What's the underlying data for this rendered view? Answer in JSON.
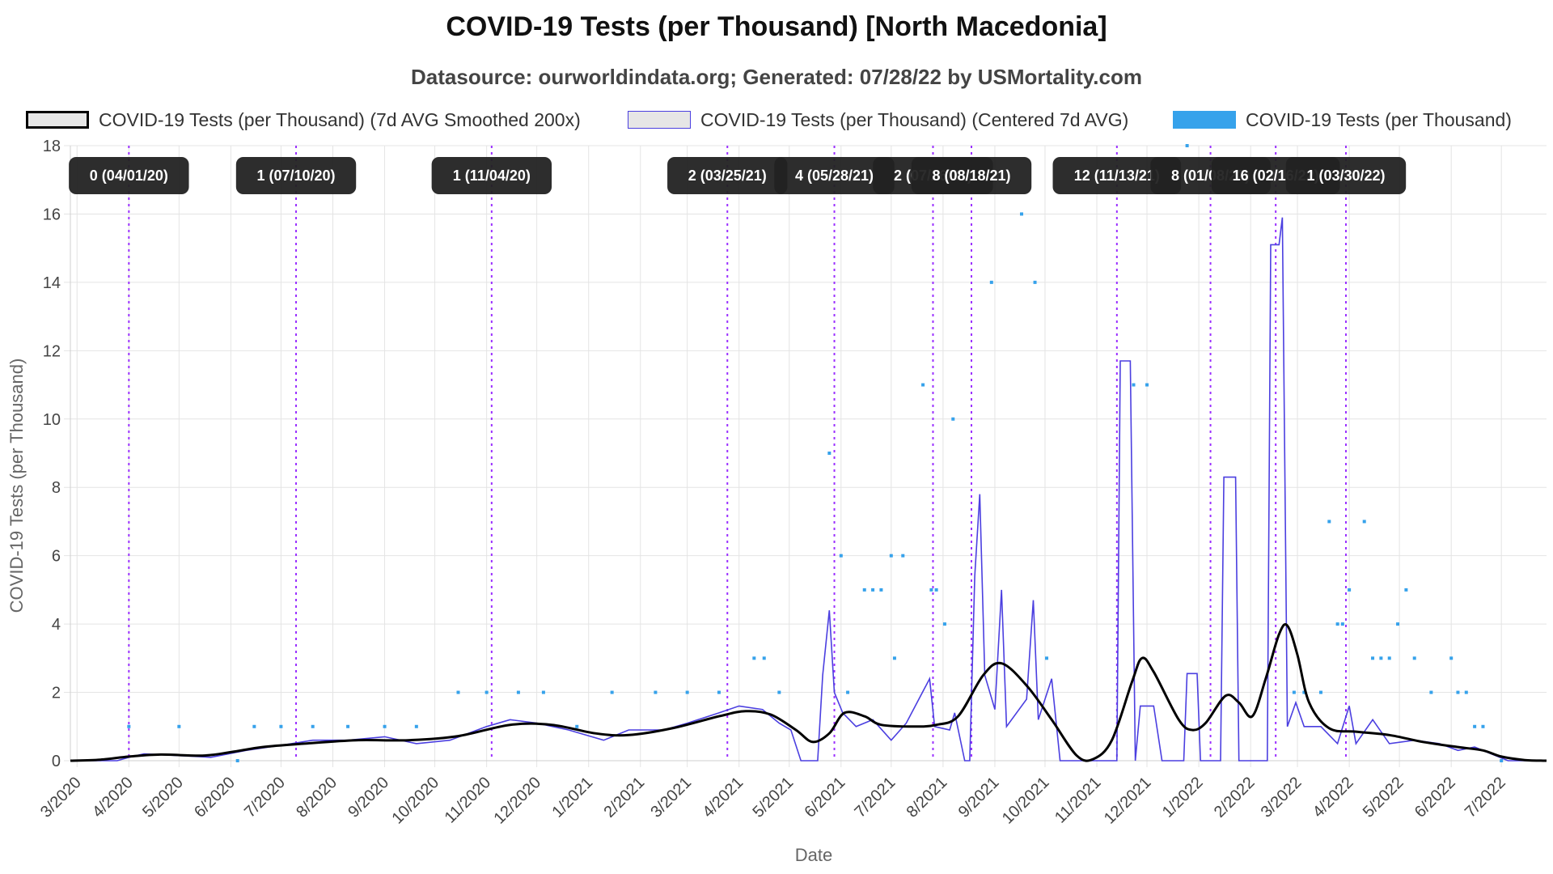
{
  "title": "COVID-19 Tests (per Thousand) [North Macedonia]",
  "subtitle": "Datasource: ourworldindata.org; Generated: 07/28/22 by USMortality.com",
  "legend": [
    {
      "label": "COVID-19 Tests (per Thousand) (7d AVG Smoothed 200x)",
      "color": "#000000",
      "fill": "#e6e6e6"
    },
    {
      "label": "COVID-19 Tests (per Thousand) (Centered 7d AVG)",
      "color": "#4b3fe0",
      "fill": "#e6e6e6"
    },
    {
      "label": "COVID-19 Tests (per Thousand)",
      "color": "#36a2eb",
      "fill": "#36a2eb"
    }
  ],
  "chart_data": {
    "type": "line",
    "xlabel": "Date",
    "ylabel": "COVID-19 Tests (per Thousand)",
    "x_range": [
      "2020-02-26",
      "2022-07-28"
    ],
    "ylim": [
      0,
      18
    ],
    "yticks": [
      0,
      2,
      4,
      6,
      8,
      10,
      12,
      14,
      16,
      18
    ],
    "xticks": [
      "3/2020",
      "4/2020",
      "5/2020",
      "6/2020",
      "7/2020",
      "8/2020",
      "9/2020",
      "10/2020",
      "11/2020",
      "12/2020",
      "1/2021",
      "2/2021",
      "3/2021",
      "4/2021",
      "5/2021",
      "6/2021",
      "7/2021",
      "8/2021",
      "9/2021",
      "10/2021",
      "11/2021",
      "12/2021",
      "1/2022",
      "2/2022",
      "3/2022",
      "4/2022",
      "5/2022",
      "6/2022",
      "7/2022"
    ],
    "grid": true,
    "legend_position": "top",
    "series": [
      {
        "name": "COVID-19 Tests (per Thousand) (7d AVG Smoothed 200x)",
        "color": "#000000",
        "points": [
          [
            "2020-02-26",
            0
          ],
          [
            "2020-03-15",
            0.03
          ],
          [
            "2020-04-01",
            0.12
          ],
          [
            "2020-04-20",
            0.18
          ],
          [
            "2020-05-15",
            0.15
          ],
          [
            "2020-06-01",
            0.25
          ],
          [
            "2020-06-20",
            0.4
          ],
          [
            "2020-07-15",
            0.5
          ],
          [
            "2020-08-15",
            0.6
          ],
          [
            "2020-09-15",
            0.6
          ],
          [
            "2020-10-15",
            0.72
          ],
          [
            "2020-11-15",
            1.05
          ],
          [
            "2020-12-10",
            1.05
          ],
          [
            "2021-01-05",
            0.8
          ],
          [
            "2021-01-25",
            0.75
          ],
          [
            "2021-02-20",
            0.95
          ],
          [
            "2021-03-20",
            1.3
          ],
          [
            "2021-04-05",
            1.45
          ],
          [
            "2021-04-20",
            1.35
          ],
          [
            "2021-05-05",
            0.9
          ],
          [
            "2021-05-15",
            0.55
          ],
          [
            "2021-05-25",
            0.8
          ],
          [
            "2021-06-03",
            1.4
          ],
          [
            "2021-06-15",
            1.3
          ],
          [
            "2021-06-25",
            1.05
          ],
          [
            "2021-07-15",
            1.0
          ],
          [
            "2021-07-28",
            1.05
          ],
          [
            "2021-08-10",
            1.3
          ],
          [
            "2021-08-25",
            2.5
          ],
          [
            "2021-09-05",
            2.85
          ],
          [
            "2021-09-20",
            2.2
          ],
          [
            "2021-10-05",
            1.2
          ],
          [
            "2021-10-20",
            0.15
          ],
          [
            "2021-10-30",
            0.05
          ],
          [
            "2021-11-10",
            0.6
          ],
          [
            "2021-11-22",
            2.3
          ],
          [
            "2021-11-28",
            3.0
          ],
          [
            "2021-12-05",
            2.6
          ],
          [
            "2021-12-20",
            1.2
          ],
          [
            "2021-12-28",
            0.9
          ],
          [
            "2022-01-05",
            1.1
          ],
          [
            "2022-01-17",
            1.9
          ],
          [
            "2022-01-25",
            1.7
          ],
          [
            "2022-02-02",
            1.3
          ],
          [
            "2022-02-10",
            2.4
          ],
          [
            "2022-02-18",
            3.7
          ],
          [
            "2022-02-23",
            3.95
          ],
          [
            "2022-03-01",
            3.1
          ],
          [
            "2022-03-08",
            1.7
          ],
          [
            "2022-03-20",
            0.95
          ],
          [
            "2022-04-05",
            0.85
          ],
          [
            "2022-04-25",
            0.75
          ],
          [
            "2022-05-15",
            0.55
          ],
          [
            "2022-06-05",
            0.4
          ],
          [
            "2022-06-20",
            0.3
          ],
          [
            "2022-07-01",
            0.12
          ],
          [
            "2022-07-15",
            0.02
          ],
          [
            "2022-07-28",
            0
          ]
        ]
      },
      {
        "name": "COVID-19 Tests (per Thousand) (Centered 7d AVG)",
        "color": "#4b3fe0",
        "points": [
          [
            "2020-02-26",
            0
          ],
          [
            "2020-03-25",
            0
          ],
          [
            "2020-04-01",
            0.1
          ],
          [
            "2020-04-10",
            0.2
          ],
          [
            "2020-05-01",
            0.15
          ],
          [
            "2020-05-20",
            0.1
          ],
          [
            "2020-06-10",
            0.3
          ],
          [
            "2020-07-01",
            0.45
          ],
          [
            "2020-07-20",
            0.6
          ],
          [
            "2020-08-10",
            0.6
          ],
          [
            "2020-09-01",
            0.7
          ],
          [
            "2020-09-20",
            0.5
          ],
          [
            "2020-10-10",
            0.6
          ],
          [
            "2020-11-01",
            1.0
          ],
          [
            "2020-11-15",
            1.2
          ],
          [
            "2020-12-01",
            1.1
          ],
          [
            "2020-12-20",
            0.9
          ],
          [
            "2021-01-10",
            0.6
          ],
          [
            "2021-01-25",
            0.9
          ],
          [
            "2021-02-15",
            0.9
          ],
          [
            "2021-03-01",
            1.1
          ],
          [
            "2021-03-20",
            1.4
          ],
          [
            "2021-04-01",
            1.6
          ],
          [
            "2021-04-15",
            1.5
          ],
          [
            "2021-04-25",
            1.1
          ],
          [
            "2021-05-02",
            0.9
          ],
          [
            "2021-05-08",
            0
          ],
          [
            "2021-05-18",
            0
          ],
          [
            "2021-05-21",
            2.5
          ],
          [
            "2021-05-25",
            4.4
          ],
          [
            "2021-05-28",
            2.0
          ],
          [
            "2021-06-02",
            1.4
          ],
          [
            "2021-06-10",
            1.0
          ],
          [
            "2021-06-20",
            1.2
          ],
          [
            "2021-07-01",
            0.6
          ],
          [
            "2021-07-10",
            1.1
          ],
          [
            "2021-07-24",
            2.4
          ],
          [
            "2021-07-27",
            1.0
          ],
          [
            "2021-08-05",
            0.9
          ],
          [
            "2021-08-08",
            1.4
          ],
          [
            "2021-08-14",
            0
          ],
          [
            "2021-08-17",
            0
          ],
          [
            "2021-08-20",
            5.4
          ],
          [
            "2021-08-23",
            7.8
          ],
          [
            "2021-08-26",
            2.5
          ],
          [
            "2021-09-01",
            1.5
          ],
          [
            "2021-09-05",
            5.0
          ],
          [
            "2021-09-08",
            1.0
          ],
          [
            "2021-09-20",
            1.8
          ],
          [
            "2021-09-24",
            4.7
          ],
          [
            "2021-09-27",
            1.2
          ],
          [
            "2021-10-05",
            2.4
          ],
          [
            "2021-10-10",
            0
          ],
          [
            "2021-11-13",
            0
          ],
          [
            "2021-11-15",
            11.7
          ],
          [
            "2021-11-21",
            11.7
          ],
          [
            "2021-11-24",
            0
          ],
          [
            "2021-11-27",
            1.6
          ],
          [
            "2021-12-05",
            1.6
          ],
          [
            "2021-12-10",
            0
          ],
          [
            "2021-12-23",
            0
          ],
          [
            "2021-12-25",
            2.55
          ],
          [
            "2021-12-31",
            2.55
          ],
          [
            "2022-01-02",
            0
          ],
          [
            "2022-01-14",
            0
          ],
          [
            "2022-01-16",
            8.3
          ],
          [
            "2022-01-23",
            8.3
          ],
          [
            "2022-01-25",
            0
          ],
          [
            "2022-02-11",
            0
          ],
          [
            "2022-02-13",
            15.1
          ],
          [
            "2022-02-18",
            15.1
          ],
          [
            "2022-02-20",
            15.9
          ],
          [
            "2022-02-23",
            1.0
          ],
          [
            "2022-02-28",
            1.7
          ],
          [
            "2022-03-05",
            1.0
          ],
          [
            "2022-03-15",
            1.0
          ],
          [
            "2022-03-25",
            0.5
          ],
          [
            "2022-04-01",
            1.6
          ],
          [
            "2022-04-05",
            0.5
          ],
          [
            "2022-04-15",
            1.2
          ],
          [
            "2022-04-25",
            0.5
          ],
          [
            "2022-05-10",
            0.6
          ],
          [
            "2022-05-25",
            0.5
          ],
          [
            "2022-06-05",
            0.3
          ],
          [
            "2022-06-15",
            0.4
          ],
          [
            "2022-06-25",
            0.2
          ],
          [
            "2022-07-05",
            0
          ],
          [
            "2022-07-28",
            0
          ]
        ]
      },
      {
        "name": "COVID-19 Tests (per Thousand)",
        "color": "#36a2eb",
        "points": [
          [
            "2020-06-05",
            0
          ],
          [
            "2020-04-01",
            1
          ],
          [
            "2020-05-01",
            1
          ],
          [
            "2020-06-15",
            1
          ],
          [
            "2020-07-01",
            1
          ],
          [
            "2020-07-20",
            1
          ],
          [
            "2020-08-10",
            1
          ],
          [
            "2020-09-01",
            1
          ],
          [
            "2020-09-20",
            1
          ],
          [
            "2020-10-15",
            2
          ],
          [
            "2020-11-01",
            2
          ],
          [
            "2020-11-20",
            2
          ],
          [
            "2020-12-05",
            2
          ],
          [
            "2020-12-25",
            1
          ],
          [
            "2021-01-15",
            2
          ],
          [
            "2021-02-10",
            2
          ],
          [
            "2021-03-01",
            2
          ],
          [
            "2021-03-20",
            2
          ],
          [
            "2021-04-10",
            3
          ],
          [
            "2021-04-16",
            3
          ],
          [
            "2021-04-25",
            2
          ],
          [
            "2021-05-25",
            9
          ],
          [
            "2021-06-01",
            6
          ],
          [
            "2021-06-05",
            2
          ],
          [
            "2021-06-15",
            5
          ],
          [
            "2021-06-20",
            5
          ],
          [
            "2021-06-25",
            5
          ],
          [
            "2021-07-01",
            6
          ],
          [
            "2021-07-03",
            3
          ],
          [
            "2021-07-08",
            6
          ],
          [
            "2021-07-20",
            11
          ],
          [
            "2021-07-25",
            5
          ],
          [
            "2021-07-28",
            5
          ],
          [
            "2021-08-02",
            4
          ],
          [
            "2021-08-07",
            10
          ],
          [
            "2021-08-30",
            14
          ],
          [
            "2021-09-17",
            16
          ],
          [
            "2021-09-25",
            14
          ],
          [
            "2021-10-02",
            3
          ],
          [
            "2021-11-23",
            11
          ],
          [
            "2021-12-01",
            11
          ],
          [
            "2021-12-25",
            18
          ],
          [
            "2022-02-27",
            2
          ],
          [
            "2022-03-05",
            2
          ],
          [
            "2022-03-15",
            2
          ],
          [
            "2022-03-20",
            7
          ],
          [
            "2022-03-25",
            4
          ],
          [
            "2022-03-28",
            4
          ],
          [
            "2022-04-01",
            5
          ],
          [
            "2022-04-10",
            7
          ],
          [
            "2022-04-15",
            3
          ],
          [
            "2022-04-20",
            3
          ],
          [
            "2022-04-25",
            3
          ],
          [
            "2022-04-30",
            4
          ],
          [
            "2022-05-05",
            5
          ],
          [
            "2022-05-10",
            3
          ],
          [
            "2022-05-20",
            2
          ],
          [
            "2022-06-01",
            3
          ],
          [
            "2022-06-05",
            2
          ],
          [
            "2022-06-10",
            2
          ],
          [
            "2022-06-15",
            1
          ],
          [
            "2022-06-20",
            1
          ],
          [
            "2022-07-01",
            0
          ]
        ]
      }
    ],
    "annotations": [
      {
        "date": "2020-04-01",
        "label": "0 (04/01/20)"
      },
      {
        "date": "2020-07-10",
        "label": "1 (07/10/20)"
      },
      {
        "date": "2020-11-04",
        "label": "1 (11/04/20)"
      },
      {
        "date": "2021-03-25",
        "label": "2 (03/25/21)"
      },
      {
        "date": "2021-05-28",
        "label": "4 (05/28/21)"
      },
      {
        "date": "2021-07-26",
        "label": "2 (07/26/21)"
      },
      {
        "date": "2021-08-18",
        "label": "8 (08/18/21)"
      },
      {
        "date": "2021-11-13",
        "label": "12 (11/13/21)"
      },
      {
        "date": "2022-01-08",
        "label": "8 (01/08/22)"
      },
      {
        "date": "2022-02-16",
        "label": "16 (02/16/22)"
      },
      {
        "date": "2022-03-30",
        "label": "1 (03/30/22)"
      }
    ]
  }
}
